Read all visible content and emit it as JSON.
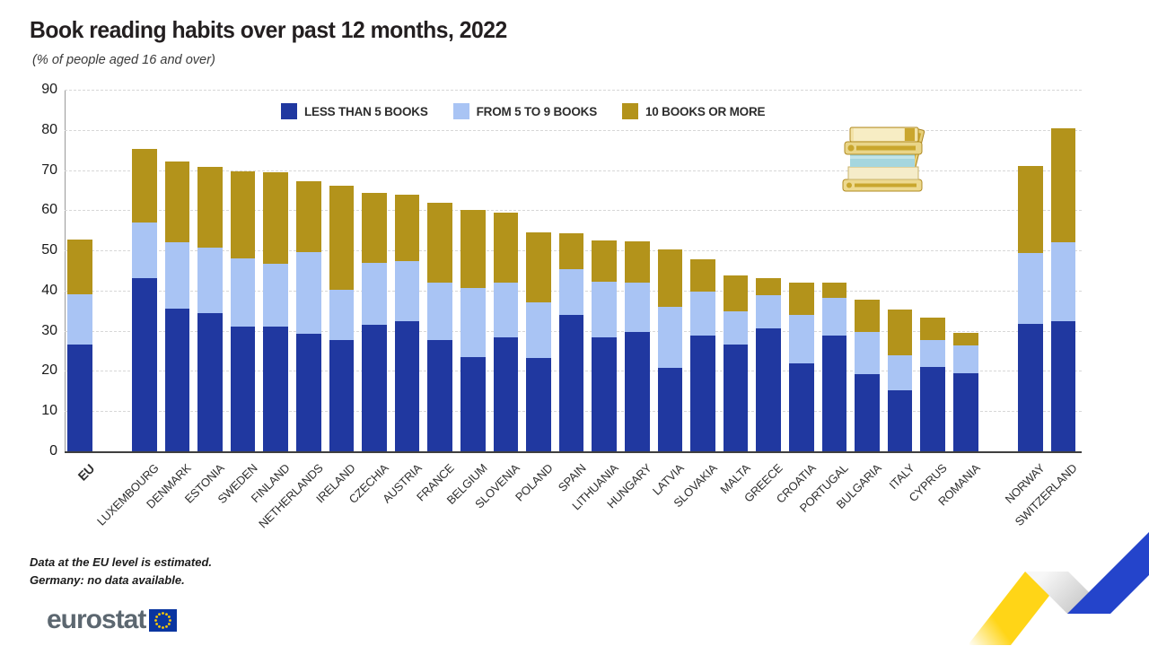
{
  "title": "Book reading habits over past 12 months, 2022",
  "subtitle": "(% of people aged 16 and over)",
  "footnotes": [
    "Data at the EU level is estimated.",
    "Germany: no data available."
  ],
  "logo": {
    "text": "eurostat"
  },
  "colors": {
    "less_than_5": "#2038a0",
    "from_5_to_9": "#a9c4f4",
    "ten_or_more": "#b3931b",
    "grid": "#d7d7d7",
    "deco_yellow": "#ffd517",
    "deco_blue": "#2444cb"
  },
  "chart_data": {
    "type": "bar",
    "stacked": true,
    "title": "Book reading habits over past 12 months, 2022",
    "subtitle": "(% of people aged 16 and over)",
    "ylabel": "",
    "xlabel": "",
    "ylim": [
      0,
      90
    ],
    "ytick_step": 10,
    "grid": "horizontal-dashed",
    "legend_position": "top-center",
    "series": [
      {
        "key": "less_than_5",
        "name": "LESS THAN 5 BOOKS",
        "color": "#2038a0"
      },
      {
        "key": "from_5_to_9",
        "name": "FROM 5 TO 9 BOOKS",
        "color": "#a9c4f4"
      },
      {
        "key": "ten_or_more",
        "name": "10 BOOKS OR MORE",
        "color": "#b3931b"
      }
    ],
    "countries": [
      {
        "label": "EU",
        "group": "eu",
        "bold": true,
        "less_than_5": 26.5,
        "from_5_to_9": 12.5,
        "ten_or_more": 13.8
      },
      {
        "label": "LUXEMBOURG",
        "group": "members",
        "less_than_5": 43.0,
        "from_5_to_9": 14.0,
        "ten_or_more": 18.2
      },
      {
        "label": "DENMARK",
        "group": "members",
        "less_than_5": 35.5,
        "from_5_to_9": 16.5,
        "ten_or_more": 20.1
      },
      {
        "label": "ESTONIA",
        "group": "members",
        "less_than_5": 34.5,
        "from_5_to_9": 16.3,
        "ten_or_more": 20.0
      },
      {
        "label": "SWEDEN",
        "group": "members",
        "less_than_5": 31.0,
        "from_5_to_9": 17.0,
        "ten_or_more": 21.7
      },
      {
        "label": "FINLAND",
        "group": "members",
        "less_than_5": 31.0,
        "from_5_to_9": 15.7,
        "ten_or_more": 22.8
      },
      {
        "label": "NETHERLANDS",
        "group": "members",
        "less_than_5": 29.3,
        "from_5_to_9": 20.3,
        "ten_or_more": 17.6
      },
      {
        "label": "IRELAND",
        "group": "members",
        "less_than_5": 27.6,
        "from_5_to_9": 12.6,
        "ten_or_more": 25.9
      },
      {
        "label": "CZECHIA",
        "group": "members",
        "less_than_5": 31.6,
        "from_5_to_9": 15.3,
        "ten_or_more": 17.5
      },
      {
        "label": "AUSTRIA",
        "group": "members",
        "less_than_5": 32.3,
        "from_5_to_9": 15.1,
        "ten_or_more": 16.5
      },
      {
        "label": "FRANCE",
        "group": "members",
        "less_than_5": 27.7,
        "from_5_to_9": 14.2,
        "ten_or_more": 20.0
      },
      {
        "label": "BELGIUM",
        "group": "members",
        "less_than_5": 23.5,
        "from_5_to_9": 17.1,
        "ten_or_more": 19.4
      },
      {
        "label": "SLOVENIA",
        "group": "members",
        "less_than_5": 28.4,
        "from_5_to_9": 13.6,
        "ten_or_more": 17.4
      },
      {
        "label": "POLAND",
        "group": "members",
        "less_than_5": 23.2,
        "from_5_to_9": 13.9,
        "ten_or_more": 17.5
      },
      {
        "label": "SPAIN",
        "group": "members",
        "less_than_5": 34.0,
        "from_5_to_9": 11.3,
        "ten_or_more": 8.9
      },
      {
        "label": "LITHUANIA",
        "group": "members",
        "less_than_5": 28.3,
        "from_5_to_9": 13.9,
        "ten_or_more": 10.2
      },
      {
        "label": "HUNGARY",
        "group": "members",
        "less_than_5": 29.7,
        "from_5_to_9": 12.3,
        "ten_or_more": 10.2
      },
      {
        "label": "LATVIA",
        "group": "members",
        "less_than_5": 20.8,
        "from_5_to_9": 15.2,
        "ten_or_more": 14.3
      },
      {
        "label": "SLOVAKIA",
        "group": "members",
        "less_than_5": 28.8,
        "from_5_to_9": 11.0,
        "ten_or_more": 7.9
      },
      {
        "label": "MALTA",
        "group": "members",
        "less_than_5": 26.6,
        "from_5_to_9": 8.3,
        "ten_or_more": 8.8
      },
      {
        "label": "GREECE",
        "group": "members",
        "less_than_5": 30.5,
        "from_5_to_9": 8.3,
        "ten_or_more": 4.2
      },
      {
        "label": "CROATIA",
        "group": "members",
        "less_than_5": 21.8,
        "from_5_to_9": 12.1,
        "ten_or_more": 8.2
      },
      {
        "label": "PORTUGAL",
        "group": "members",
        "less_than_5": 28.8,
        "from_5_to_9": 9.5,
        "ten_or_more": 3.6
      },
      {
        "label": "BULGARIA",
        "group": "members",
        "less_than_5": 19.2,
        "from_5_to_9": 10.6,
        "ten_or_more": 8.0
      },
      {
        "label": "ITALY",
        "group": "members",
        "less_than_5": 15.2,
        "from_5_to_9": 8.6,
        "ten_or_more": 11.6
      },
      {
        "label": "CYPRUS",
        "group": "members",
        "less_than_5": 21.1,
        "from_5_to_9": 6.6,
        "ten_or_more": 5.5
      },
      {
        "label": "ROMANIA",
        "group": "members",
        "less_than_5": 19.5,
        "from_5_to_9": 6.8,
        "ten_or_more": 3.1
      },
      {
        "label": "NORWAY",
        "group": "efta",
        "less_than_5": 31.8,
        "from_5_to_9": 17.6,
        "ten_or_more": 21.6
      },
      {
        "label": "SWITZERLAND",
        "group": "efta",
        "less_than_5": 32.4,
        "from_5_to_9": 19.7,
        "ten_or_more": 28.4
      }
    ]
  }
}
